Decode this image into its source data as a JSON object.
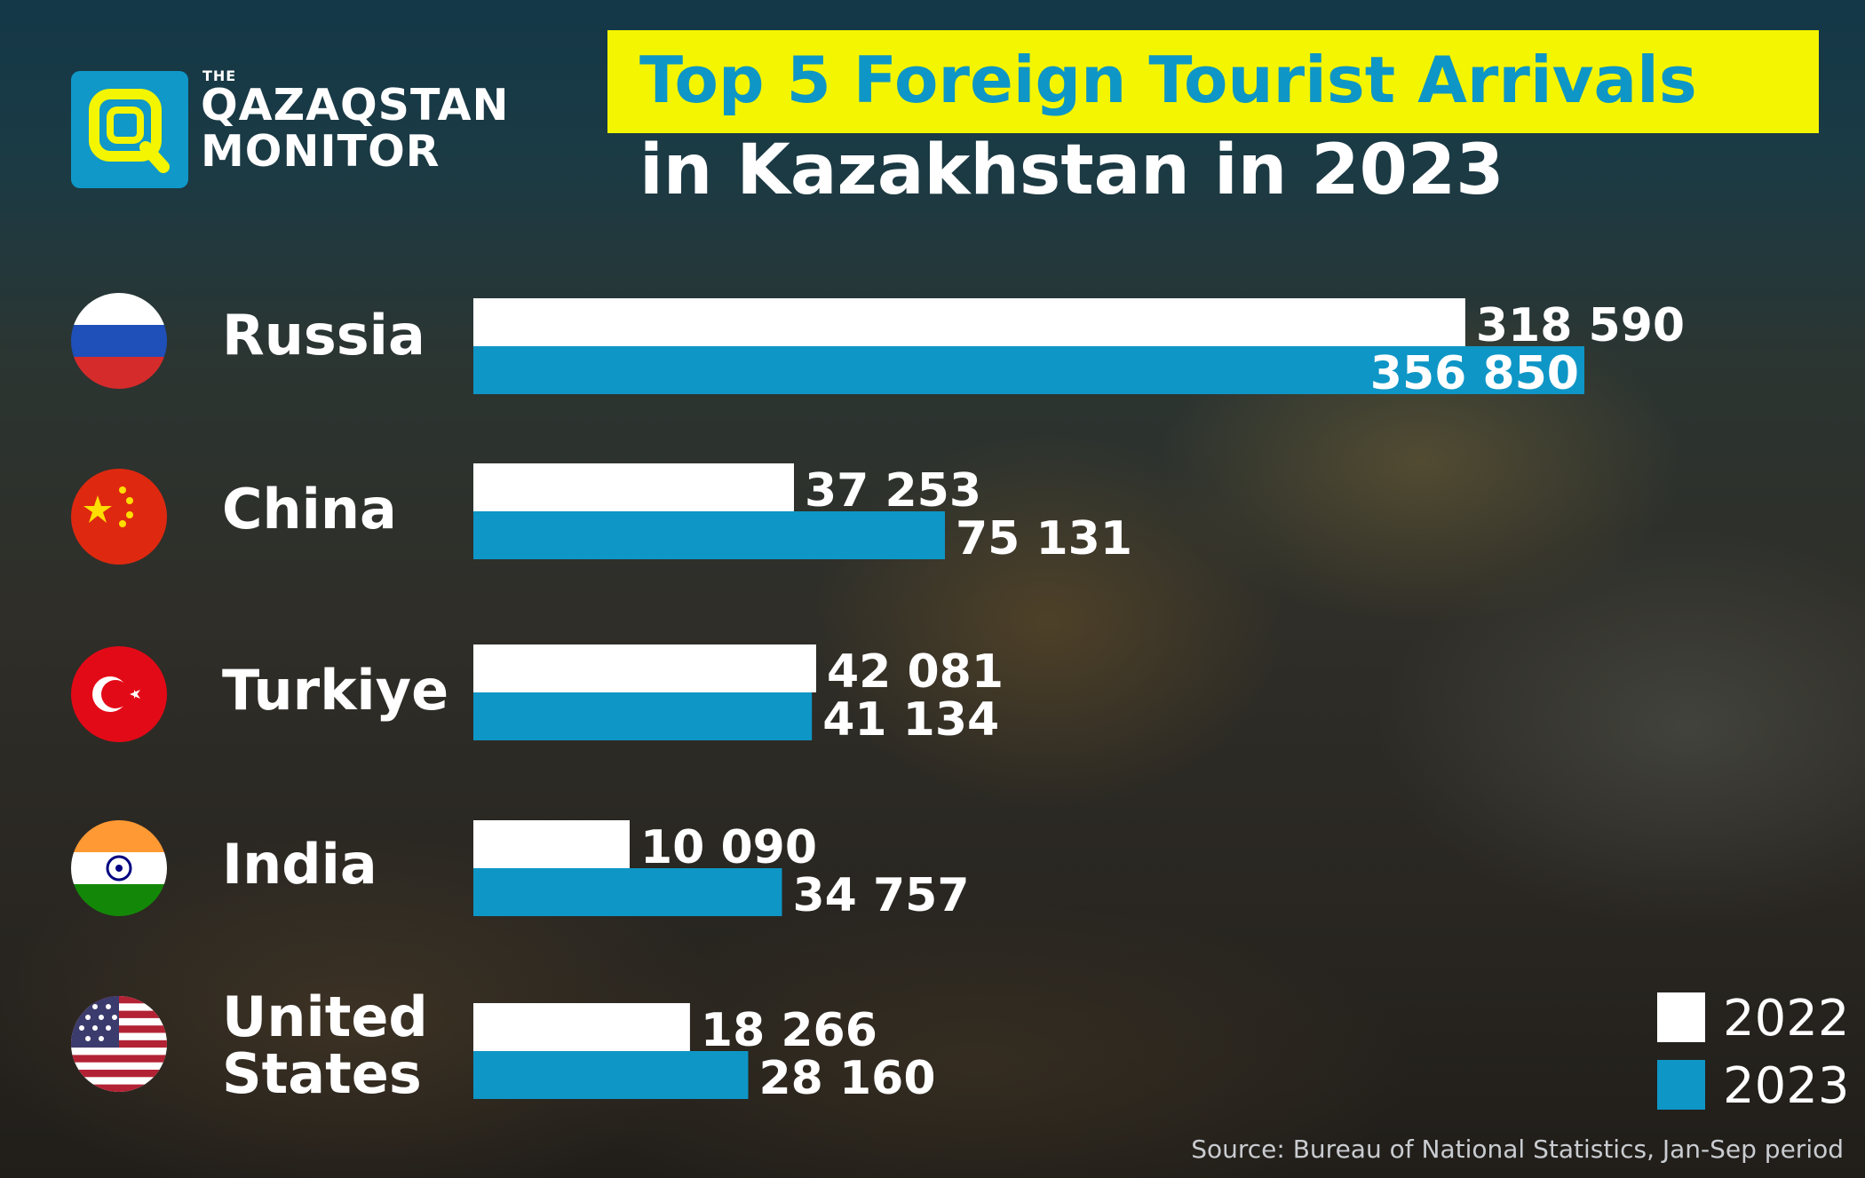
{
  "logo": {
    "the": "THE",
    "line1": "QAZAQSTAN",
    "line2": "MONITOR"
  },
  "title": {
    "line1": "Top 5 Foreign Tourist Arrivals",
    "line2": "in Kazakhstan in 2023"
  },
  "rows": [
    {
      "country": "Russia",
      "country_line2": "",
      "flag": "russia-flag-icon",
      "value_2022": "318 590",
      "value_2023": "356 850"
    },
    {
      "country": "China",
      "country_line2": "",
      "flag": "china-flag-icon",
      "value_2022": "37 253",
      "value_2023": "75 131"
    },
    {
      "country": "Turkiye",
      "country_line2": "",
      "flag": "turkiye-flag-icon",
      "value_2022": "42 081",
      "value_2023": "41 134"
    },
    {
      "country": "India",
      "country_line2": "",
      "flag": "india-flag-icon",
      "value_2022": "10 090",
      "value_2023": "34 757"
    },
    {
      "country": "United",
      "country_line2": "States",
      "flag": "usa-flag-icon",
      "value_2022": "18 266",
      "value_2023": "28 160"
    }
  ],
  "legend": {
    "y2022": "2022",
    "y2023": "2023"
  },
  "source": "Source: Bureau of National Statistics, Jan-Sep period",
  "colors": {
    "bar_2022": "#ffffff",
    "bar_2023": "#0e96c6",
    "title_highlight": "#f4f500",
    "title_text": "#0e96c6"
  },
  "chart_data": {
    "type": "bar",
    "orientation": "horizontal",
    "title": "Top 5 Foreign Tourist Arrivals in Kazakhstan in 2023",
    "categories": [
      "Russia",
      "China",
      "Turkiye",
      "India",
      "United States"
    ],
    "series": [
      {
        "name": "2022",
        "values": [
          318590,
          37253,
          42081,
          10090,
          18266
        ],
        "color": "#ffffff"
      },
      {
        "name": "2023",
        "values": [
          356850,
          75131,
          41134,
          34757,
          28160
        ],
        "color": "#0e96c6"
      }
    ],
    "legend": "bottom-right",
    "grid": false
  }
}
